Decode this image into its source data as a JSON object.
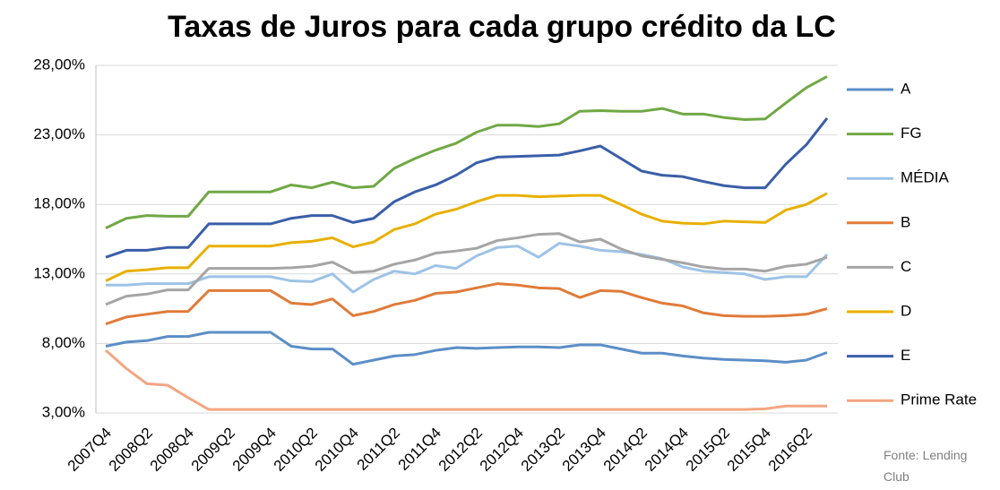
{
  "chart_data": {
    "type": "line",
    "title": "Taxas de Juros para cada grupo crédito da LC",
    "source": "Fonte: Lending Club",
    "categories": [
      "2007Q4",
      null,
      "2008Q2",
      null,
      "2008Q4",
      null,
      "2009Q2",
      null,
      "2009Q4",
      null,
      "2010Q2",
      null,
      "2010Q4",
      null,
      "2011Q2",
      null,
      "2011Q4",
      null,
      "2012Q2",
      null,
      "2012Q4",
      null,
      "2013Q2",
      null,
      "2013Q4",
      null,
      "2014Q2",
      null,
      "2014Q4",
      null,
      "2015Q2",
      null,
      "2015Q4",
      null,
      "2016Q2",
      null
    ],
    "ylim": [
      3,
      28
    ],
    "yticks": [
      {
        "value": 3,
        "label": "3,00%"
      },
      {
        "value": 8,
        "label": "8,00%"
      },
      {
        "value": 13,
        "label": "13,00%"
      },
      {
        "value": 18,
        "label": "18,00%"
      },
      {
        "value": 23,
        "label": "23,00%"
      },
      {
        "value": 28,
        "label": "28,00%"
      }
    ],
    "grid": true,
    "legend": "right",
    "series": [
      {
        "name": "A",
        "color": "#5b8ec6",
        "values": [
          7.8,
          8.1,
          8.2,
          8.5,
          8.5,
          8.8,
          8.8,
          8.8,
          8.8,
          7.8,
          7.6,
          7.6,
          6.5,
          6.8,
          7.1,
          7.2,
          7.5,
          7.7,
          7.65,
          7.7,
          7.75,
          7.75,
          7.7,
          7.9,
          7.9,
          7.6,
          7.3,
          7.3,
          7.1,
          6.95,
          6.85,
          6.8,
          6.75,
          6.65,
          6.8,
          7.35
        ]
      },
      {
        "name": "FG",
        "color": "#70a845",
        "values": [
          16.3,
          17.0,
          17.2,
          17.15,
          17.15,
          18.9,
          18.9,
          18.9,
          18.9,
          19.4,
          19.2,
          19.6,
          19.2,
          19.3,
          20.6,
          21.3,
          21.9,
          22.4,
          23.2,
          23.7,
          23.7,
          23.6,
          23.8,
          24.7,
          24.75,
          24.7,
          24.7,
          24.9,
          24.5,
          24.5,
          24.25,
          24.1,
          24.15,
          25.3,
          26.4,
          27.2
        ]
      },
      {
        "name": "MÉDIA",
        "color": "#9dc3e6",
        "values": [
          12.2,
          12.2,
          12.3,
          12.3,
          12.3,
          12.8,
          12.8,
          12.8,
          12.8,
          12.5,
          12.45,
          13.0,
          11.7,
          12.6,
          13.2,
          13.0,
          13.6,
          13.4,
          14.3,
          14.9,
          15.0,
          14.2,
          15.2,
          15.0,
          14.7,
          14.6,
          14.4,
          14.1,
          13.5,
          13.2,
          13.1,
          13.0,
          12.6,
          12.8,
          12.8,
          14.4
        ]
      },
      {
        "name": "B",
        "color": "#e07b39",
        "values": [
          9.4,
          9.9,
          10.1,
          10.3,
          10.3,
          11.8,
          11.8,
          11.8,
          11.8,
          10.9,
          10.8,
          11.2,
          10.0,
          10.3,
          10.8,
          11.1,
          11.6,
          11.7,
          12.0,
          12.3,
          12.2,
          12.0,
          11.95,
          11.3,
          11.8,
          11.75,
          11.3,
          10.9,
          10.7,
          10.2,
          10.0,
          9.95,
          9.95,
          10.0,
          10.1,
          10.5
        ]
      },
      {
        "name": "C",
        "color": "#a5a5a5",
        "values": [
          10.8,
          11.4,
          11.55,
          11.85,
          11.85,
          13.4,
          13.4,
          13.4,
          13.4,
          13.45,
          13.55,
          13.85,
          13.1,
          13.2,
          13.7,
          14.0,
          14.5,
          14.65,
          14.85,
          15.4,
          15.6,
          15.85,
          15.9,
          15.3,
          15.5,
          14.8,
          14.3,
          14.05,
          13.8,
          13.5,
          13.35,
          13.35,
          13.2,
          13.55,
          13.7,
          14.2
        ]
      },
      {
        "name": "D",
        "color": "#e8b000",
        "values": [
          12.5,
          13.2,
          13.3,
          13.45,
          13.45,
          15.0,
          15.0,
          15.0,
          15.0,
          15.25,
          15.35,
          15.6,
          14.95,
          15.3,
          16.2,
          16.6,
          17.3,
          17.65,
          18.2,
          18.65,
          18.65,
          18.55,
          18.6,
          18.65,
          18.65,
          18.0,
          17.3,
          16.8,
          16.65,
          16.6,
          16.8,
          16.75,
          16.7,
          17.6,
          18.0,
          18.8
        ]
      },
      {
        "name": "E",
        "color": "#3a5ea8",
        "values": [
          14.2,
          14.7,
          14.7,
          14.9,
          14.9,
          16.6,
          16.6,
          16.6,
          16.6,
          17.0,
          17.2,
          17.2,
          16.7,
          17.0,
          18.2,
          18.9,
          19.4,
          20.1,
          21.0,
          21.4,
          21.45,
          21.5,
          21.55,
          21.85,
          22.2,
          21.3,
          20.4,
          20.1,
          20.0,
          19.65,
          19.35,
          19.2,
          19.2,
          20.9,
          22.3,
          24.2
        ]
      },
      {
        "name": "Prime Rate",
        "color": "#f4a582",
        "values": [
          7.5,
          6.2,
          5.1,
          5.0,
          4.1,
          3.25,
          3.25,
          3.25,
          3.25,
          3.25,
          3.25,
          3.25,
          3.25,
          3.25,
          3.25,
          3.25,
          3.25,
          3.25,
          3.25,
          3.25,
          3.25,
          3.25,
          3.25,
          3.25,
          3.25,
          3.25,
          3.25,
          3.25,
          3.25,
          3.25,
          3.25,
          3.25,
          3.3,
          3.5,
          3.5,
          3.5
        ]
      }
    ]
  }
}
